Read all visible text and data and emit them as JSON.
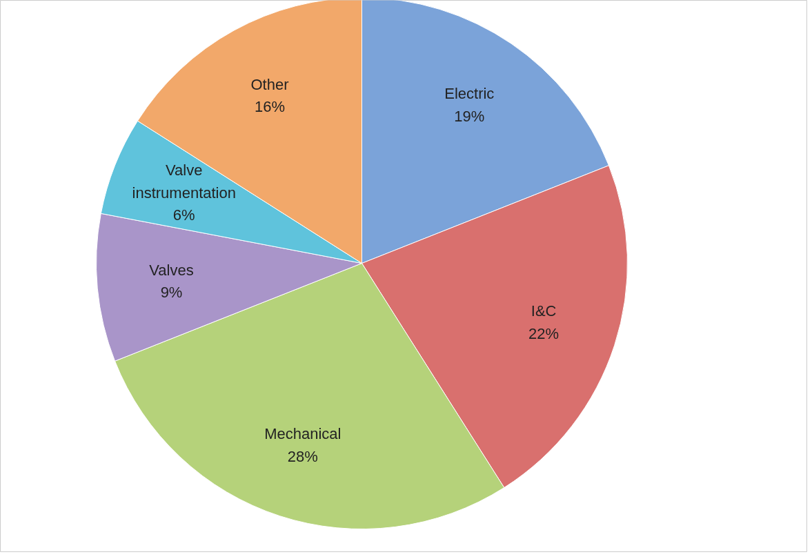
{
  "chart_data": {
    "type": "pie",
    "categories": [
      "Electric",
      "I&C",
      "Mechanical",
      "Valves",
      "Valve instrumentation",
      "Other"
    ],
    "values": [
      19,
      22,
      28,
      9,
      6,
      16
    ],
    "value_labels": [
      "19%",
      "22%",
      "28%",
      "9%",
      "6%",
      "16%"
    ],
    "colors": [
      "#7ba3d9",
      "#d9706e",
      "#b5d27a",
      "#a995c9",
      "#5fc3dc",
      "#f2a86a"
    ]
  }
}
